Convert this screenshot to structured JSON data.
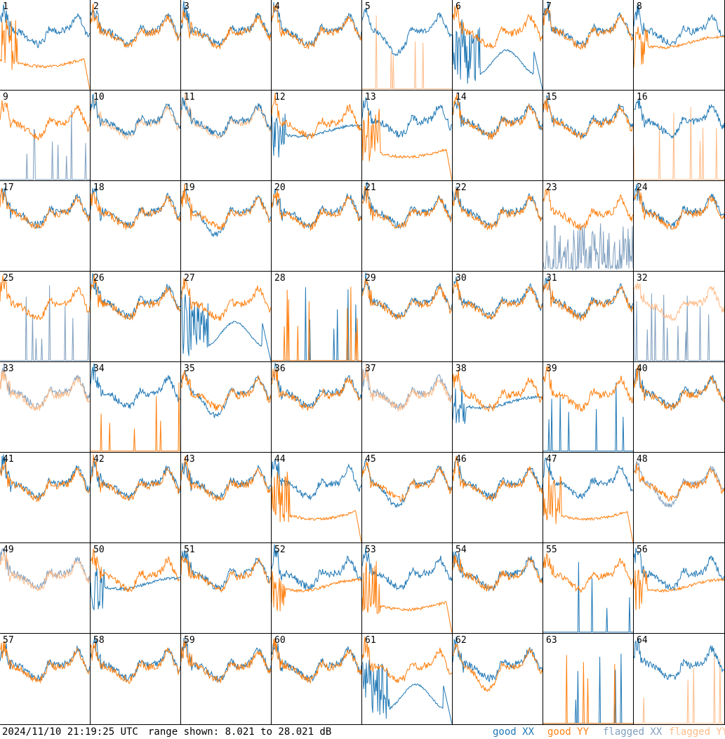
{
  "footer": {
    "timestamp": "2024/11/10 21:19:25 UTC",
    "range": "range shown: 8.021 to 28.021 dB"
  },
  "legend": {
    "good_xx": "good XX",
    "good_yy": "good YY",
    "flagged_xx": "flagged XX",
    "flagged_yy": "flagged YY"
  },
  "colors": {
    "good_xx": "#1f77b4",
    "good_yy": "#ff7f0e",
    "flagged_xx": "#7f9fbf",
    "flagged_yy": "#ffbb88"
  },
  "chart_data": {
    "type": "line",
    "ylim": [
      8.021,
      28.021
    ],
    "y_unit": "dB",
    "grid": "8x8 small multiples",
    "series_names": [
      "good XX",
      "good YY",
      "flagged XX",
      "flagged YY"
    ],
    "panels": [
      {
        "n": 1,
        "xx": "good",
        "yy": "good",
        "xx_shape": "normal",
        "yy_shape": "rolloff"
      },
      {
        "n": 2,
        "xx": "good",
        "yy": "good",
        "xx_shape": "normal",
        "yy_shape": "normal"
      },
      {
        "n": 3,
        "xx": "good",
        "yy": "good",
        "xx_shape": "normal",
        "yy_shape": "normal"
      },
      {
        "n": 4,
        "xx": "good",
        "yy": "good",
        "xx_shape": "normal",
        "yy_shape": "normal"
      },
      {
        "n": 5,
        "xx": "good",
        "yy": "flagged",
        "xx_shape": "low_dip",
        "yy_shape": "dead"
      },
      {
        "n": 6,
        "xx": "good",
        "yy": "good",
        "xx_shape": "hump",
        "yy_shape": "normal"
      },
      {
        "n": 7,
        "xx": "good",
        "yy": "good",
        "xx_shape": "normal",
        "yy_shape": "normal"
      },
      {
        "n": 8,
        "xx": "good",
        "yy": "good",
        "xx_shape": "normal",
        "yy_shape": "flat"
      },
      {
        "n": 9,
        "xx": "flagged",
        "yy": "good",
        "xx_shape": "dead",
        "yy_shape": "normal"
      },
      {
        "n": 10,
        "xx": "good",
        "yy": "flagged",
        "xx_shape": "normal",
        "yy_shape": "normal"
      },
      {
        "n": 11,
        "xx": "good",
        "yy": "flagged",
        "xx_shape": "normal",
        "yy_shape": "normal"
      },
      {
        "n": 12,
        "xx": "good",
        "yy": "good",
        "xx_shape": "flat",
        "yy_shape": "normal"
      },
      {
        "n": 13,
        "xx": "good",
        "yy": "good",
        "xx_shape": "normal",
        "yy_shape": "rolloff"
      },
      {
        "n": 14,
        "xx": "good",
        "yy": "good",
        "xx_shape": "normal",
        "yy_shape": "normal"
      },
      {
        "n": 15,
        "xx": "good",
        "yy": "good",
        "xx_shape": "normal",
        "yy_shape": "normal"
      },
      {
        "n": 16,
        "xx": "good",
        "yy": "flagged",
        "xx_shape": "normal",
        "yy_shape": "dead"
      },
      {
        "n": 17,
        "xx": "good",
        "yy": "good",
        "xx_shape": "normal",
        "yy_shape": "normal"
      },
      {
        "n": 18,
        "xx": "good",
        "yy": "good",
        "xx_shape": "normal",
        "yy_shape": "normal"
      },
      {
        "n": 19,
        "xx": "good",
        "yy": "good",
        "xx_shape": "low_dip",
        "yy_shape": "normal"
      },
      {
        "n": 20,
        "xx": "good",
        "yy": "good",
        "xx_shape": "normal",
        "yy_shape": "normal"
      },
      {
        "n": 21,
        "xx": "good",
        "yy": "good",
        "xx_shape": "normal",
        "yy_shape": "normal"
      },
      {
        "n": 22,
        "xx": "good",
        "yy": "good",
        "xx_shape": "normal",
        "yy_shape": "normal"
      },
      {
        "n": 23,
        "xx": "flagged",
        "yy": "good",
        "xx_shape": "spiky",
        "yy_shape": "normal"
      },
      {
        "n": 24,
        "xx": "good",
        "yy": "good",
        "xx_shape": "normal",
        "yy_shape": "normal"
      },
      {
        "n": 25,
        "xx": "flagged",
        "yy": "good",
        "xx_shape": "dead",
        "yy_shape": "normal"
      },
      {
        "n": 26,
        "xx": "good",
        "yy": "good",
        "xx_shape": "normal",
        "yy_shape": "normal"
      },
      {
        "n": 27,
        "xx": "good",
        "yy": "good",
        "xx_shape": "hump",
        "yy_shape": "normal"
      },
      {
        "n": 28,
        "xx": "good",
        "yy": "good",
        "xx_shape": "dead",
        "yy_shape": "dead"
      },
      {
        "n": 29,
        "xx": "good",
        "yy": "good",
        "xx_shape": "normal",
        "yy_shape": "normal"
      },
      {
        "n": 30,
        "xx": "good",
        "yy": "good",
        "xx_shape": "normal",
        "yy_shape": "normal"
      },
      {
        "n": 31,
        "xx": "good",
        "yy": "good",
        "xx_shape": "normal",
        "yy_shape": "normal"
      },
      {
        "n": 32,
        "xx": "flagged",
        "yy": "flagged",
        "xx_shape": "dead",
        "yy_shape": "normal"
      },
      {
        "n": 33,
        "xx": "flagged",
        "yy": "flagged",
        "xx_shape": "normal",
        "yy_shape": "normal"
      },
      {
        "n": 34,
        "xx": "good",
        "yy": "good",
        "xx_shape": "normal",
        "yy_shape": "dead"
      },
      {
        "n": 35,
        "xx": "good",
        "yy": "good",
        "xx_shape": "low_dip",
        "yy_shape": "normal"
      },
      {
        "n": 36,
        "xx": "good",
        "yy": "good",
        "xx_shape": "normal",
        "yy_shape": "normal"
      },
      {
        "n": 37,
        "xx": "flagged",
        "yy": "flagged",
        "xx_shape": "normal",
        "yy_shape": "normal"
      },
      {
        "n": 38,
        "xx": "good",
        "yy": "good",
        "xx_shape": "flat",
        "yy_shape": "normal"
      },
      {
        "n": 39,
        "xx": "good",
        "yy": "good",
        "xx_shape": "dead",
        "yy_shape": "normal"
      },
      {
        "n": 40,
        "xx": "good",
        "yy": "good",
        "xx_shape": "normal",
        "yy_shape": "normal"
      },
      {
        "n": 41,
        "xx": "good",
        "yy": "good",
        "xx_shape": "normal",
        "yy_shape": "normal"
      },
      {
        "n": 42,
        "xx": "good",
        "yy": "good",
        "xx_shape": "normal",
        "yy_shape": "normal"
      },
      {
        "n": 43,
        "xx": "good",
        "yy": "good",
        "xx_shape": "normal",
        "yy_shape": "normal"
      },
      {
        "n": 44,
        "xx": "good",
        "yy": "good",
        "xx_shape": "normal",
        "yy_shape": "rolloff"
      },
      {
        "n": 45,
        "xx": "good",
        "yy": "good",
        "xx_shape": "low_dip",
        "yy_shape": "normal"
      },
      {
        "n": 46,
        "xx": "good",
        "yy": "good",
        "xx_shape": "normal",
        "yy_shape": "normal"
      },
      {
        "n": 47,
        "xx": "good",
        "yy": "good",
        "xx_shape": "normal",
        "yy_shape": "rolloff"
      },
      {
        "n": 48,
        "xx": "flagged",
        "yy": "good",
        "xx_shape": "low_dip",
        "yy_shape": "normal"
      },
      {
        "n": 49,
        "xx": "flagged",
        "yy": "flagged",
        "xx_shape": "normal",
        "yy_shape": "normal"
      },
      {
        "n": 50,
        "xx": "good",
        "yy": "good",
        "xx_shape": "flat",
        "yy_shape": "normal"
      },
      {
        "n": 51,
        "xx": "good",
        "yy": "good",
        "xx_shape": "normal",
        "yy_shape": "normal"
      },
      {
        "n": 52,
        "xx": "good",
        "yy": "good",
        "xx_shape": "normal",
        "yy_shape": "flat"
      },
      {
        "n": 53,
        "xx": "good",
        "yy": "good",
        "xx_shape": "normal",
        "yy_shape": "rolloff"
      },
      {
        "n": 54,
        "xx": "good",
        "yy": "good",
        "xx_shape": "normal",
        "yy_shape": "normal"
      },
      {
        "n": 55,
        "xx": "good",
        "yy": "good",
        "xx_shape": "dead",
        "yy_shape": "normal"
      },
      {
        "n": 56,
        "xx": "good",
        "yy": "good",
        "xx_shape": "normal",
        "yy_shape": "flat"
      },
      {
        "n": 57,
        "xx": "good",
        "yy": "good",
        "xx_shape": "normal",
        "yy_shape": "normal"
      },
      {
        "n": 58,
        "xx": "good",
        "yy": "good",
        "xx_shape": "normal",
        "yy_shape": "normal"
      },
      {
        "n": 59,
        "xx": "good",
        "yy": "good",
        "xx_shape": "normal",
        "yy_shape": "normal"
      },
      {
        "n": 60,
        "xx": "good",
        "yy": "good",
        "xx_shape": "normal",
        "yy_shape": "normal"
      },
      {
        "n": 61,
        "xx": "good",
        "yy": "good",
        "xx_shape": "hump",
        "yy_shape": "normal"
      },
      {
        "n": 62,
        "xx": "good",
        "yy": "good",
        "xx_shape": "normal",
        "yy_shape": "low_dip"
      },
      {
        "n": 63,
        "xx": "good",
        "yy": "good",
        "xx_shape": "dead",
        "yy_shape": "dead"
      },
      {
        "n": 64,
        "xx": "good",
        "yy": "flagged",
        "xx_shape": "normal",
        "yy_shape": "dead"
      }
    ]
  }
}
